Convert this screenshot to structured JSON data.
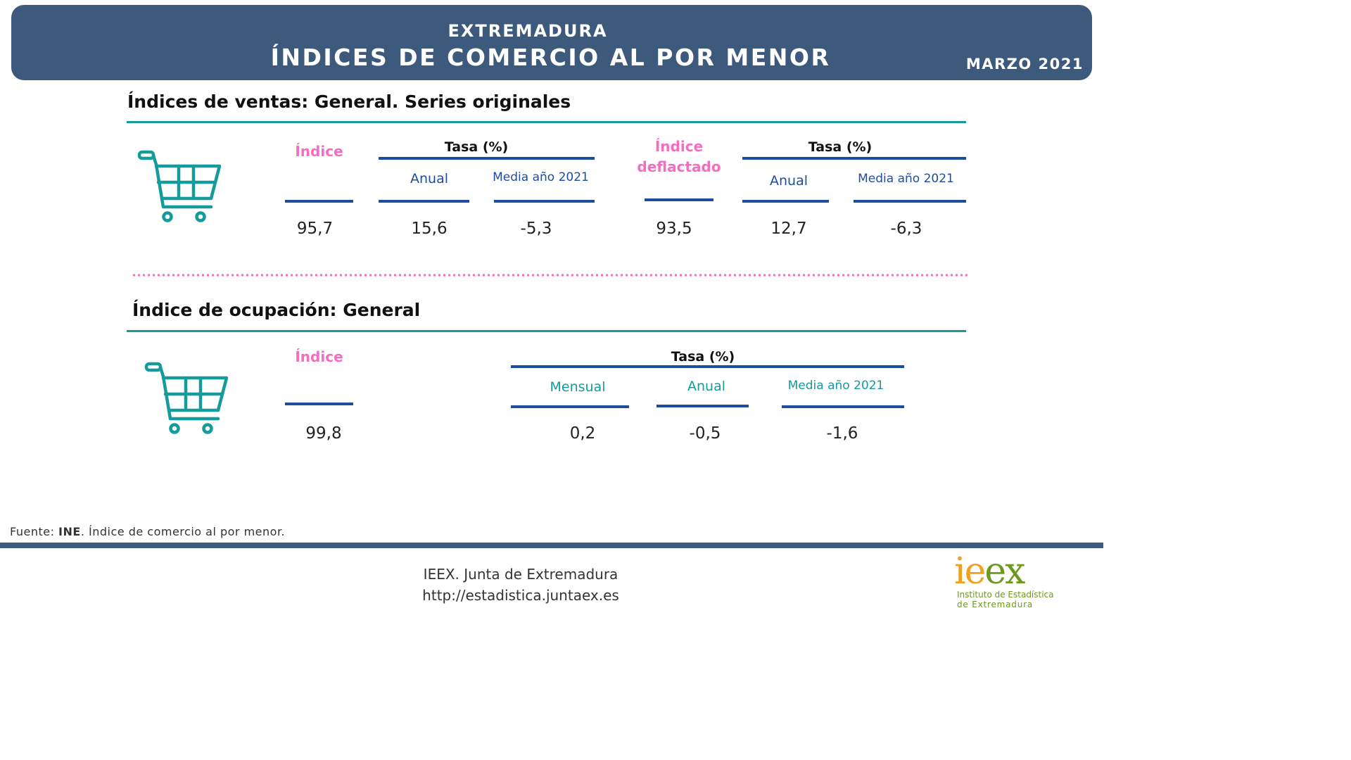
{
  "header": {
    "region": "EXTREMADURA",
    "title": "ÍNDICES DE COMERCIO AL POR MENOR",
    "date": "MARZO 2021"
  },
  "sales": {
    "title": "Índices de ventas: General. Series originales",
    "index_label": "Índice",
    "deflated_label_1": "Índice",
    "deflated_label_2": "deflactado",
    "rate_label": "Tasa (%)",
    "annual_label": "Anual",
    "avg_label": "Media año 2021",
    "index_value": "95,7",
    "annual_value": "15,6",
    "avg_value": "-5,3",
    "deflated_value": "93,5",
    "deflated_annual_value": "12,7",
    "deflated_avg_value": "-6,3"
  },
  "employment": {
    "title": "Índice de ocupación: General",
    "index_label": "Índice",
    "rate_label": "Tasa (%)",
    "monthly_label": "Mensual",
    "annual_label": "Anual",
    "avg_label": "Media año 2021",
    "index_value": "99,8",
    "monthly_value": "0,2",
    "annual_value": "-0,5",
    "avg_value": "-1,6"
  },
  "footer": {
    "source_prefix": "Fuente: ",
    "source_org": "INE",
    "source_text": ". Índice de comercio al por menor.",
    "line1": "IEEX. Junta de Extremadura",
    "line2": "http://estadistica.juntaex.es",
    "logo_ie": "ie",
    "logo_ex": "ex",
    "logo_sub1": "Instituto de Estadística",
    "logo_sub2": "de Extremadura"
  },
  "colors": {
    "banner": "#3d5a7d",
    "teal": "#159b9b",
    "pink": "#f56cc0",
    "blue": "#1e4da0",
    "logo_orange": "#f0a01e",
    "logo_green": "#6b9a1e"
  },
  "icons": [
    "shopping-cart-icon"
  ]
}
